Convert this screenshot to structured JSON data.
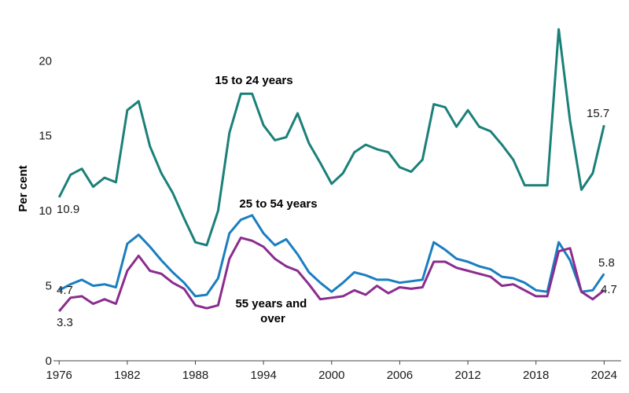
{
  "chart_data": {
    "type": "line",
    "ylabel": "Per cent",
    "xlabel": "",
    "ylim": [
      0,
      23
    ],
    "xlim": [
      1975.5,
      2025.5
    ],
    "yticks": [
      0,
      5,
      10,
      15,
      20
    ],
    "xticks": [
      1976,
      1982,
      1988,
      1994,
      2000,
      2006,
      2012,
      2018,
      2024
    ],
    "grid": false,
    "x": [
      1976,
      1977,
      1978,
      1979,
      1980,
      1981,
      1982,
      1983,
      1984,
      1985,
      1986,
      1987,
      1988,
      1989,
      1990,
      1991,
      1992,
      1993,
      1994,
      1995,
      1996,
      1997,
      1998,
      1999,
      2000,
      2001,
      2002,
      2003,
      2004,
      2005,
      2006,
      2007,
      2008,
      2009,
      2010,
      2011,
      2012,
      2013,
      2014,
      2015,
      2016,
      2017,
      2018,
      2019,
      2020,
      2021,
      2022,
      2023,
      2024
    ],
    "series": [
      {
        "name": "15 to 24 years",
        "color": "#1b8079",
        "values": [
          10.9,
          12.4,
          12.8,
          11.6,
          12.2,
          11.9,
          16.7,
          17.3,
          14.3,
          12.5,
          11.2,
          9.5,
          7.9,
          7.7,
          10.0,
          15.2,
          17.8,
          17.8,
          15.7,
          14.7,
          14.9,
          16.5,
          14.5,
          13.2,
          11.8,
          12.5,
          13.9,
          14.4,
          14.1,
          13.9,
          12.9,
          12.6,
          13.4,
          17.1,
          16.9,
          15.6,
          16.7,
          15.6,
          15.3,
          14.4,
          13.4,
          11.7,
          11.7,
          11.7,
          22.1,
          16.0,
          11.4,
          12.5,
          15.7
        ],
        "start_label": "10.9",
        "end_label": "15.7"
      },
      {
        "name": "25 to 54 years",
        "color": "#1a7ec0",
        "values": [
          4.7,
          5.1,
          5.4,
          5.0,
          5.1,
          4.9,
          7.8,
          8.4,
          7.6,
          6.7,
          5.9,
          5.2,
          4.3,
          4.4,
          5.5,
          8.5,
          9.4,
          9.7,
          8.5,
          7.7,
          8.1,
          7.1,
          5.9,
          5.2,
          4.6,
          5.2,
          5.9,
          5.7,
          5.4,
          5.4,
          5.2,
          5.3,
          5.4,
          7.9,
          7.4,
          6.8,
          6.6,
          6.3,
          6.1,
          5.6,
          5.5,
          5.2,
          4.7,
          4.6,
          7.9,
          6.7,
          4.6,
          4.7,
          5.8
        ],
        "start_label": "4.7",
        "end_label": "5.8"
      },
      {
        "name": "55 years and over",
        "color": "#8b2c8f",
        "values": [
          3.3,
          4.2,
          4.3,
          3.8,
          4.1,
          3.8,
          6.0,
          7.0,
          6.0,
          5.8,
          5.2,
          4.8,
          3.7,
          3.5,
          3.7,
          6.8,
          8.2,
          8.0,
          7.6,
          6.8,
          6.3,
          6.0,
          5.1,
          4.1,
          4.2,
          4.3,
          4.7,
          4.4,
          5.0,
          4.5,
          4.9,
          4.8,
          4.9,
          6.6,
          6.6,
          6.2,
          6.0,
          5.8,
          5.6,
          5.0,
          5.1,
          4.7,
          4.3,
          4.3,
          7.3,
          7.5,
          4.6,
          4.1,
          4.7
        ],
        "start_label": "3.3",
        "end_label": "4.7"
      }
    ]
  }
}
